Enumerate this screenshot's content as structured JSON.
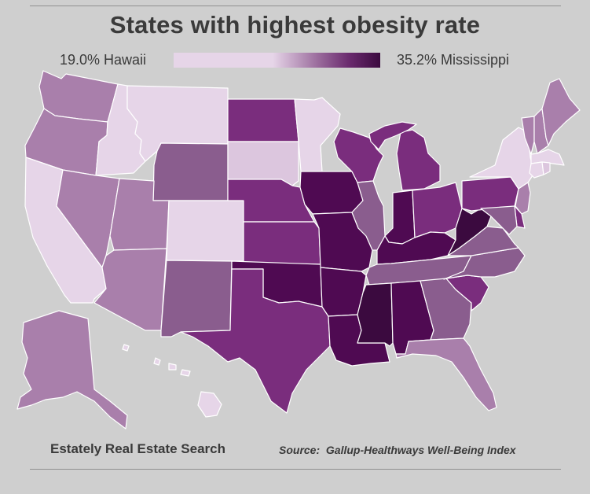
{
  "title": "States with highest obesity rate",
  "legend": {
    "min_label": "19.0% Hawaii",
    "max_label": "35.2% Mississippi",
    "min_value": 19.0,
    "max_value": 35.2
  },
  "footer": {
    "brand": "Estately Real Estate Search",
    "source_label": "Source:",
    "source_text": "Gallup-Healthways Well-Being Index"
  },
  "colors": {
    "background": "#cfcfcf",
    "low": "#e6d5e8",
    "light": "#dcc6de",
    "mid": "#a97fab",
    "midstrong": "#8a5d8e",
    "strong": "#7a2d7d",
    "dark": "#4f0a52",
    "darkest": "#3b0a3f"
  },
  "states": [
    {
      "id": "WA",
      "level": "mid"
    },
    {
      "id": "OR",
      "level": "mid"
    },
    {
      "id": "CA",
      "level": "low"
    },
    {
      "id": "ID",
      "level": "low"
    },
    {
      "id": "NV",
      "level": "mid"
    },
    {
      "id": "MT",
      "level": "low"
    },
    {
      "id": "WY",
      "level": "midstrong"
    },
    {
      "id": "UT",
      "level": "mid"
    },
    {
      "id": "AZ",
      "level": "mid"
    },
    {
      "id": "CO",
      "level": "low"
    },
    {
      "id": "NM",
      "level": "midstrong"
    },
    {
      "id": "ND",
      "level": "strong"
    },
    {
      "id": "SD",
      "level": "light"
    },
    {
      "id": "NE",
      "level": "strong"
    },
    {
      "id": "KS",
      "level": "strong"
    },
    {
      "id": "OK",
      "level": "dark"
    },
    {
      "id": "TX",
      "level": "strong"
    },
    {
      "id": "MN",
      "level": "low"
    },
    {
      "id": "IA",
      "level": "dark"
    },
    {
      "id": "MO",
      "level": "dark"
    },
    {
      "id": "AR",
      "level": "dark"
    },
    {
      "id": "LA",
      "level": "dark"
    },
    {
      "id": "WI",
      "level": "strong"
    },
    {
      "id": "IL",
      "level": "midstrong"
    },
    {
      "id": "MI",
      "level": "strong"
    },
    {
      "id": "IN",
      "level": "dark"
    },
    {
      "id": "OH",
      "level": "strong"
    },
    {
      "id": "KY",
      "level": "dark"
    },
    {
      "id": "TN",
      "level": "midstrong"
    },
    {
      "id": "MS",
      "level": "darkest"
    },
    {
      "id": "AL",
      "level": "dark"
    },
    {
      "id": "GA",
      "level": "midstrong"
    },
    {
      "id": "FL",
      "level": "mid"
    },
    {
      "id": "SC",
      "level": "strong"
    },
    {
      "id": "NC",
      "level": "midstrong"
    },
    {
      "id": "VA",
      "level": "midstrong"
    },
    {
      "id": "WV",
      "level": "darkest"
    },
    {
      "id": "PA",
      "level": "strong"
    },
    {
      "id": "NY",
      "level": "low"
    },
    {
      "id": "VT",
      "level": "mid"
    },
    {
      "id": "NH",
      "level": "mid"
    },
    {
      "id": "ME",
      "level": "mid"
    },
    {
      "id": "MA",
      "level": "low"
    },
    {
      "id": "CT",
      "level": "low"
    },
    {
      "id": "RI",
      "level": "light"
    },
    {
      "id": "NJ",
      "level": "mid"
    },
    {
      "id": "DE",
      "level": "strong"
    },
    {
      "id": "MD",
      "level": "midstrong"
    },
    {
      "id": "AK",
      "level": "mid"
    },
    {
      "id": "HI",
      "level": "low"
    }
  ]
}
